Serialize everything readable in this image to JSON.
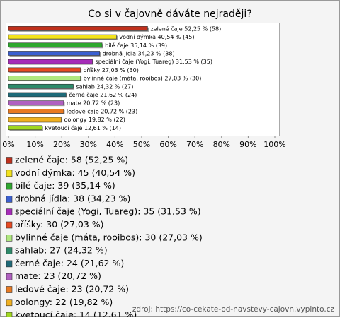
{
  "chart_data": {
    "type": "bar",
    "orientation": "horizontal",
    "title": "Co si v čajovně dáváte nejraději?",
    "categories": [
      "zelené čaje",
      "vodní dýmka",
      "bílé čaje",
      "drobná jídla",
      "speciální čaje (Yogi, Tuareg)",
      "oříšky",
      "bylinné čaje (máta, rooibos)",
      "sahlab",
      "černé čaje",
      "mate",
      "ledové čaje",
      "oolongy",
      "kvetoucí čaje"
    ],
    "values": [
      52.25,
      40.54,
      35.14,
      34.23,
      31.53,
      27.03,
      27.03,
      24.32,
      21.62,
      20.72,
      20.72,
      19.82,
      12.61
    ],
    "value_labels": [
      "zelené čaje 52,25 % (58)",
      "vodní dýmka 40,54 % (45)",
      "bílé čaje 35,14 % (39)",
      "drobná jídla 34,23 % (38)",
      "speciální čaje (Yogi, Tuareg) 31,53 % (35)",
      "oříšky 27,03 % (30)",
      "bylinné čaje (máta, rooibos) 27,03 % (30)",
      "sahlab 24,32 % (27)",
      "černé čaje 21,62 % (24)",
      "mate 20,72 % (23)",
      "ledové čaje 20,72 % (23)",
      "oolongy 19,82 % (22)",
      "kvetoucí čaje 12,61 % (14)"
    ],
    "legend_labels": [
      "zelené čaje: 58 (52,25 %)",
      "vodní dýmka: 45 (40,54 %)",
      "bílé čaje: 39 (35,14 %)",
      "drobná jídla: 38 (34,23 %)",
      "speciální čaje (Yogi, Tuareg): 35 (31,53 %)",
      "oříšky: 30 (27,03 %)",
      "bylinné čaje (máta, rooibos): 30 (27,03 %)",
      "sahlab: 27 (24,32 %)",
      "černé čaje: 24 (21,62 %)",
      "mate: 23 (20,72 %)",
      "ledové čaje: 23 (20,72 %)",
      "oolongy: 22 (19,82 %)",
      "kvetoucí čaje: 14 (12,61 %)"
    ],
    "colors": [
      "#c0301c",
      "#f2e21c",
      "#2ea82e",
      "#3a5fd0",
      "#a62cb8",
      "#e84a22",
      "#b0e880",
      "#2e8a6a",
      "#1e6a78",
      "#b060c0",
      "#e87a22",
      "#f0b020",
      "#a0d820"
    ],
    "xlim": [
      0,
      100
    ],
    "xticks": [
      {
        "value": 0,
        "label": "0%"
      },
      {
        "value": 10,
        "label": "10%"
      },
      {
        "value": 20,
        "label": "20%"
      },
      {
        "value": 30,
        "label": "30%"
      },
      {
        "value": 40,
        "label": "40%"
      },
      {
        "value": 50,
        "label": "50%"
      },
      {
        "value": 60,
        "label": "60%"
      },
      {
        "value": 70,
        "label": "70%"
      },
      {
        "value": 80,
        "label": "80%"
      },
      {
        "value": 90,
        "label": "90%"
      },
      {
        "value": 100,
        "label": "100%"
      }
    ],
    "source": "zdroj: https://co-cekate-od-navstevy-cajovn.vyplnto.cz"
  }
}
